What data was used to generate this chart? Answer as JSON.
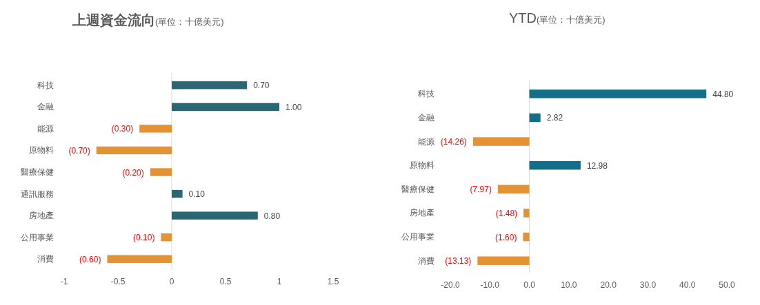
{
  "chart_data": [
    {
      "type": "bar",
      "orientation": "horizontal",
      "title": "上週資金流向",
      "subtitle": "(單位：十億美元)",
      "categories": [
        "科技",
        "金融",
        "能源",
        "原物料",
        "醫療保健",
        "通訊服務",
        "房地產",
        "公用事業",
        "消費"
      ],
      "values": [
        0.7,
        1.0,
        -0.3,
        -0.7,
        -0.2,
        0.1,
        0.8,
        -0.1,
        -0.6
      ],
      "colors": [
        "#2a6673",
        "#2a6673",
        "#e39234",
        "#e39234",
        "#e39234",
        "#2a6673",
        "#2a6673",
        "#e39234",
        "#e39234"
      ],
      "value_labels": [
        "0.70",
        "1.00",
        "(0.30)",
        "(0.70)",
        "(0.20)",
        "0.10",
        "0.80",
        "(0.10)",
        "(0.60)"
      ],
      "xlim": [
        -1,
        1.5
      ],
      "xticks": [
        -1,
        -0.5,
        0,
        0.5,
        1,
        1.5
      ]
    },
    {
      "type": "bar",
      "orientation": "horizontal",
      "title": "YTD",
      "subtitle": "(單位：十億美元)",
      "categories": [
        "科技",
        "金融",
        "能源",
        "原物料",
        "醫療保健",
        "房地產",
        "公用事業",
        "消費"
      ],
      "values": [
        44.8,
        2.82,
        -14.26,
        12.98,
        -7.97,
        -1.48,
        -1.6,
        -13.13
      ],
      "colors": [
        "#156e87",
        "#156e87",
        "#e39234",
        "#156e87",
        "#e39234",
        "#e39234",
        "#e39234",
        "#e39234"
      ],
      "value_labels": [
        "44.80",
        "2.82",
        "(14.26)",
        "12.98",
        "(7.97)",
        "(1.48)",
        "(1.60)",
        "(13.13)"
      ],
      "xlim": [
        -20,
        50
      ],
      "xticks": [
        {
          "value": -20,
          "label": "-20.0"
        },
        {
          "value": -10,
          "label": "-10.0"
        },
        {
          "value": 0,
          "label": "0.0"
        },
        {
          "value": 10,
          "label": "10.0"
        },
        {
          "value": 20,
          "label": "20.0"
        },
        {
          "value": 30,
          "label": "30.0"
        },
        {
          "value": 40,
          "label": "40.0"
        },
        {
          "value": 50,
          "label": "50.0"
        }
      ]
    }
  ]
}
